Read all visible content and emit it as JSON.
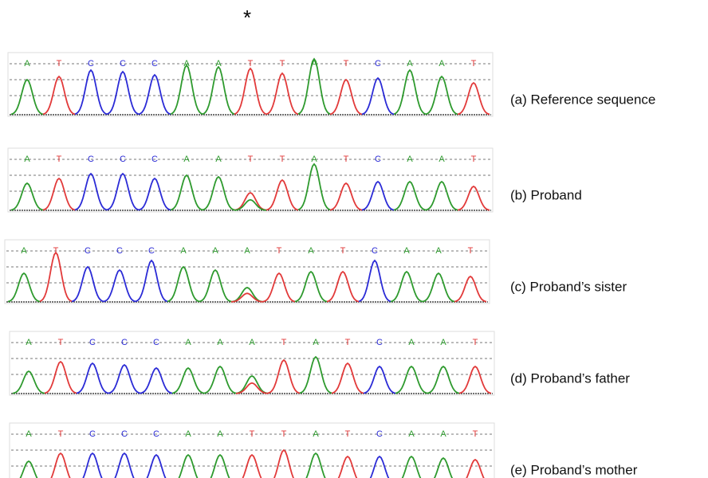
{
  "marker": "*",
  "panels": [
    {
      "label": "(a) Reference sequence",
      "bases": [
        "A",
        "T",
        "C",
        "C",
        "C",
        "A",
        "A",
        "T",
        "T",
        "A",
        "T",
        "C",
        "A",
        "A",
        "T"
      ]
    },
    {
      "label": "(b) Proband",
      "bases": [
        "A",
        "T",
        "C",
        "C",
        "C",
        "A",
        "A",
        "T",
        "T",
        "A",
        "T",
        "C",
        "A",
        "A",
        "T"
      ]
    },
    {
      "label": "(c) Proband’s sister",
      "bases": [
        "A",
        "T",
        "C",
        "C",
        "C",
        "A",
        "A",
        "A",
        "T",
        "A",
        "T",
        "C",
        "A",
        "A",
        "T"
      ]
    },
    {
      "label": "(d) Proband’s father",
      "bases": [
        "A",
        "T",
        "C",
        "C",
        "C",
        "A",
        "A",
        "A",
        "T",
        "A",
        "T",
        "C",
        "A",
        "A",
        "T"
      ]
    },
    {
      "label": "(e) Proband’s mother",
      "bases": [
        "A",
        "T",
        "C",
        "C",
        "C",
        "A",
        "A",
        "T",
        "T",
        "A",
        "T",
        "C",
        "A",
        "A",
        "T"
      ]
    }
  ]
}
